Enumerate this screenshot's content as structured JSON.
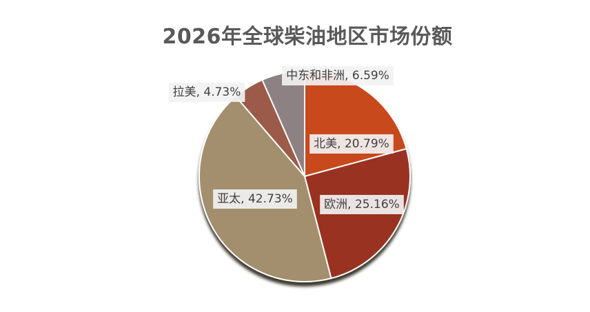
{
  "chart_data": {
    "type": "pie",
    "title": "2026年全球柴油地区市场份额",
    "slices": [
      {
        "name": "北美",
        "value": 20.79,
        "label": "北美, 20.79%",
        "color": "#C84A1E"
      },
      {
        "name": "欧洲",
        "value": 25.16,
        "label": "欧洲, 25.16%",
        "color": "#9A3324"
      },
      {
        "name": "亚太",
        "value": 42.73,
        "label": "亚太, 42.73%",
        "color": "#A38F6D"
      },
      {
        "name": "拉美",
        "value": 4.73,
        "label": "拉美, 4.73%",
        "color": "#9C5A4A"
      },
      {
        "name": "中东和非洲",
        "value": 6.59,
        "label": "中东和非洲, 6.59%",
        "color": "#8E8183"
      }
    ],
    "legend": "none",
    "start_angle_deg": 0,
    "direction": "clockwise"
  }
}
